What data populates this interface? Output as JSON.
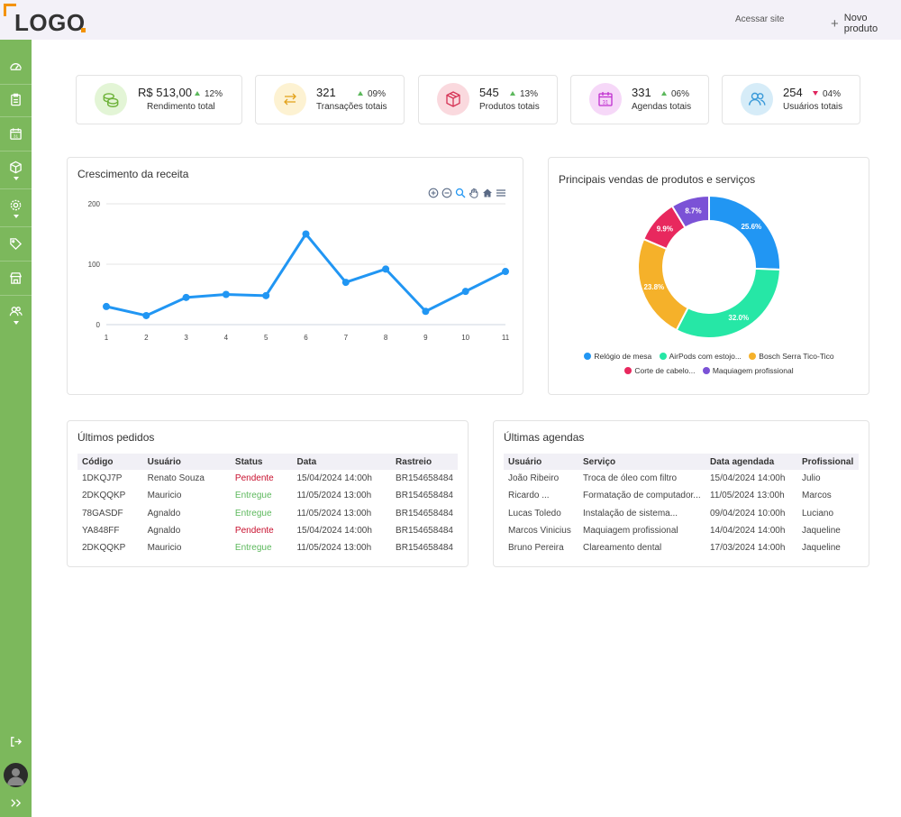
{
  "header": {
    "logo_text": "LOGO",
    "access_site": "Acessar site",
    "new_product": "Novo produto"
  },
  "sidebar": {
    "items": [
      "dashboard-icon",
      "clipboard-icon",
      "calendar-icon",
      "box-icon",
      "settings-icon",
      "tag-icon",
      "store-icon",
      "users-icon"
    ],
    "bottom": [
      "logout-icon",
      "avatar",
      "expand-icon"
    ]
  },
  "stats": [
    {
      "value": "R$ 513,00",
      "delta": "12%",
      "trend": "up",
      "label": "Rendimento total",
      "icon": "coins-icon",
      "bg": "#e3f5d6",
      "color": "#6fb33b"
    },
    {
      "value": "321",
      "delta": "09%",
      "trend": "up",
      "label": "Transações totais",
      "icon": "arrows-icon",
      "bg": "#fdf2d2",
      "color": "#e3a21a"
    },
    {
      "value": "545",
      "delta": "13%",
      "trend": "up",
      "label": "Produtos totais",
      "icon": "package-icon",
      "bg": "#fad9de",
      "color": "#d63355"
    },
    {
      "value": "331",
      "delta": "06%",
      "trend": "up",
      "label": "Agendas totais",
      "icon": "calendar-icon",
      "bg": "#f6d8f8",
      "color": "#c02fcf"
    },
    {
      "value": "254",
      "delta": "04%",
      "trend": "down",
      "label": "Usuários totais",
      "icon": "users-icon",
      "bg": "#d6ecf8",
      "color": "#3a9ad9"
    }
  ],
  "revenue": {
    "title": "Crescimento da receita"
  },
  "donut": {
    "title": "Principais vendas de produtos e serviços"
  },
  "chart_data": [
    {
      "type": "line",
      "title": "Crescimento da receita",
      "x": [
        1,
        2,
        3,
        4,
        5,
        6,
        7,
        8,
        9,
        10,
        11
      ],
      "y": [
        30,
        15,
        45,
        50,
        48,
        150,
        70,
        92,
        22,
        55,
        88
      ],
      "ylim": [
        0,
        200
      ],
      "yticks": [
        0,
        100,
        200
      ],
      "grid": true,
      "color": "#2196f3"
    },
    {
      "type": "pie",
      "title": "Principais vendas de produtos e serviços",
      "labels": [
        "Relógio de mesa",
        "AirPods com estojo...",
        "Bosch Serra Tico-Tico",
        "Corte de cabelo...",
        "Maquiagem profissional"
      ],
      "values": [
        25.6,
        32.0,
        23.8,
        9.9,
        8.7
      ],
      "value_labels": [
        "25.6%",
        "32.0%",
        "23.8%",
        "9.9%",
        "8.7%"
      ],
      "colors": [
        "#2196f3",
        "#26e7a6",
        "#f5b12a",
        "#e8285e",
        "#7b52d6"
      ],
      "legend": "bottom"
    }
  ],
  "orders": {
    "title": "Últimos pedidos",
    "headers": [
      "Código",
      "Usuário",
      "Status",
      "Data",
      "Rastreio"
    ],
    "rows": [
      [
        "1DKQJ7P",
        "Renato Souza",
        "Pendente",
        "15/04/2024 14:00h",
        "BR154658484"
      ],
      [
        "2DKQQKP",
        "Mauricio",
        "Entregue",
        "11/05/2024 13:00h",
        "BR154658484"
      ],
      [
        "78GASDF",
        "Agnaldo",
        "Entregue",
        "11/05/2024 13:00h",
        "BR154658484"
      ],
      [
        "YA848FF",
        "Agnaldo",
        "Pendente",
        "15/04/2024 14:00h",
        "BR154658484"
      ],
      [
        "2DKQQKP",
        "Mauricio",
        "Entregue",
        "11/05/2024 13:00h",
        "BR154658484"
      ]
    ]
  },
  "schedules": {
    "title": "Últimas agendas",
    "headers": [
      "Usuário",
      "Serviço",
      "Data agendada",
      "Profissional"
    ],
    "rows": [
      [
        "João Ribeiro",
        "Troca de óleo com filtro",
        "15/04/2024 14:00h",
        "Julio"
      ],
      [
        "Ricardo ...",
        "Formatação de computador...",
        "11/05/2024 13:00h",
        "Marcos"
      ],
      [
        "Lucas Toledo",
        "Instalação de sistema...",
        "09/04/2024 10:00h",
        "Luciano"
      ],
      [
        "Marcos Vinicius",
        "Maquiagem profissional",
        "14/04/2024 14:00h",
        "Jaqueline"
      ],
      [
        "Bruno Pereira",
        "Clareamento dental",
        "17/03/2024 14:00h",
        "Jaqueline"
      ]
    ]
  }
}
